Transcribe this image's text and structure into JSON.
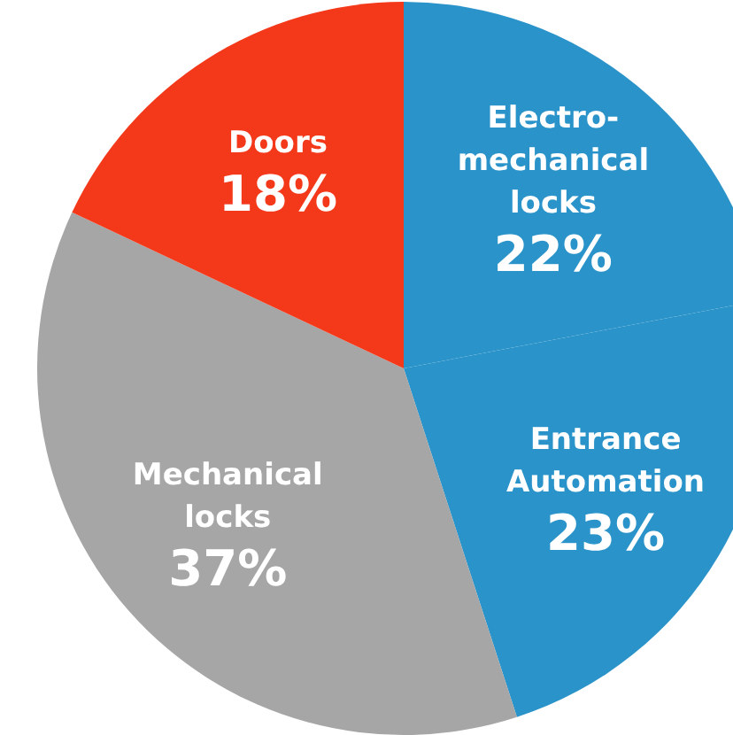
{
  "chart_data": {
    "type": "pie",
    "categories": [
      "Electro-mechanical locks",
      "Entrance Automation",
      "Mechanical locks",
      "Doors"
    ],
    "values": [
      22,
      23,
      37,
      18
    ],
    "colors": [
      "#2a93c9",
      "#2a93c9",
      "#a6a6a6",
      "#f4381a"
    ],
    "value_labels": [
      "22%",
      "23%",
      "37%",
      "18%"
    ]
  }
}
